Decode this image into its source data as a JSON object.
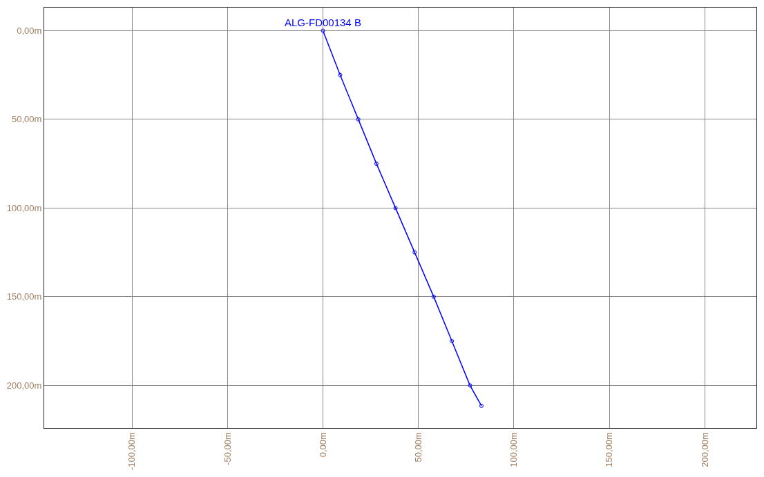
{
  "chart_data": {
    "type": "line",
    "x": [
      0,
      9,
      18.5,
      28,
      38,
      48,
      58,
      67.5,
      77,
      83
    ],
    "series": [
      {
        "name": "ALG-FD00134 B",
        "color": "#0000ff",
        "values": [
          0,
          25,
          50,
          75,
          100,
          125,
          150,
          175,
          200,
          211.5
        ]
      }
    ],
    "xlim": [
      -146,
      227
    ],
    "ylim": [
      224,
      -13
    ],
    "xticks": [
      {
        "value": -100,
        "label": "-100,00m"
      },
      {
        "value": -50,
        "label": "-50,00m"
      },
      {
        "value": 0,
        "label": "0,00m"
      },
      {
        "value": 50,
        "label": "50,00m"
      },
      {
        "value": 100,
        "label": "100,00m"
      },
      {
        "value": 150,
        "label": "150,00m"
      },
      {
        "value": 200,
        "label": "200,00m"
      }
    ],
    "yticks": [
      {
        "value": 0,
        "label": "0,00m"
      },
      {
        "value": 50,
        "label": "50,00m"
      },
      {
        "value": 100,
        "label": "100,00m"
      },
      {
        "value": 150,
        "label": "150,00m"
      },
      {
        "value": 200,
        "label": "200,00m"
      }
    ],
    "grid": true,
    "marker": "circle",
    "legend": false
  }
}
